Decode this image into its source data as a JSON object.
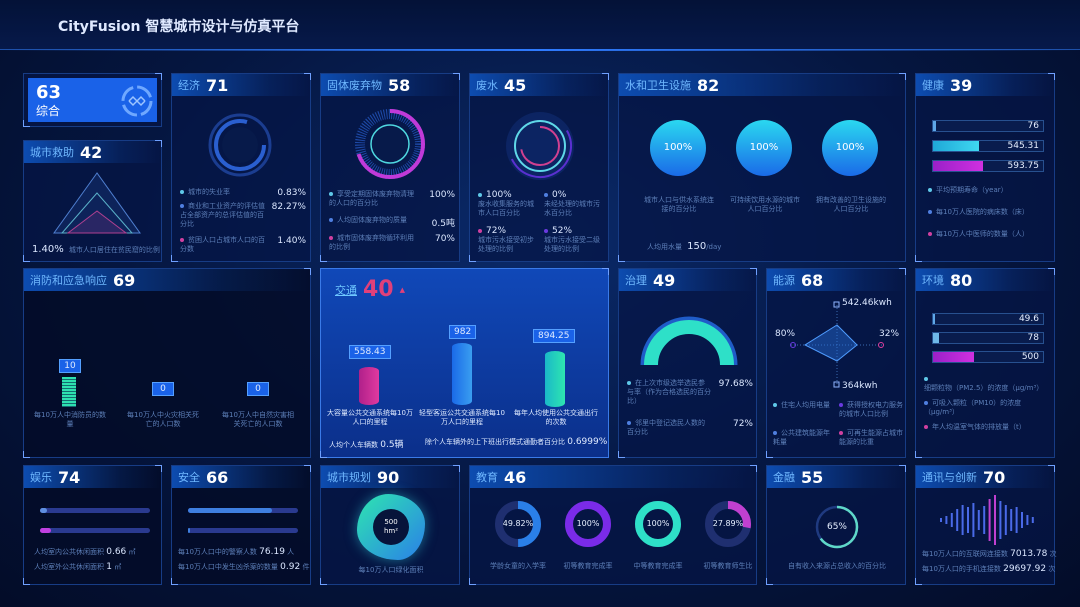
{
  "header": {
    "title": "CityFusion 智慧城市设计与仿真平台"
  },
  "colors": {
    "accent": "#1a62e8",
    "cyan": "#2fd3e0",
    "magenta": "#c42fd8",
    "teal": "#2ee6b8",
    "traffic_score": "#e0407a"
  },
  "overall": {
    "score": "63",
    "label": "综合",
    "icon": "city-network-icon"
  },
  "rescue": {
    "label": "城市救助",
    "score": "42",
    "value": "1.40%",
    "desc": "城市人口居住在贫民窟的比例"
  },
  "economy": {
    "label": "经济",
    "score": "71",
    "items": [
      {
        "text": "城市的失业率",
        "value": "0.83%"
      },
      {
        "text": "商业和工业资产的评估值占全部资产的总评估值的百分比",
        "value": "82.27%"
      },
      {
        "text": "贫困人口占城市人口的百分数",
        "value": "1.40%"
      }
    ]
  },
  "solid_waste": {
    "label": "固体废弃物",
    "score": "58",
    "items": [
      {
        "text": "享受定期固体废弃物清理的人口的百分比",
        "value": "100%"
      },
      {
        "text": "人均固体废弃物的质量",
        "value": "0.5吨"
      },
      {
        "text": "城市固体废弃物循环利用的比例",
        "value": "70%"
      }
    ]
  },
  "wastewater": {
    "label": "废水",
    "score": "45",
    "items": [
      {
        "value": "100%",
        "text": "废水收集服务的城市人口百分比"
      },
      {
        "value": "0%",
        "text": "未经处理的城市污水百分比"
      },
      {
        "value": "72%",
        "text": "城市污水接受初步处理的比例"
      },
      {
        "value": "52%",
        "text": "城市污水接受二级处理的比例"
      }
    ]
  },
  "water": {
    "label": "水和卫生设施",
    "score": "82",
    "items": [
      {
        "value": "100%",
        "text": "城市人口与供水系统连接的百分比"
      },
      {
        "value": "100%",
        "text": "可持续饮用水源的城市人口百分比"
      },
      {
        "value": "100%",
        "text": "拥有改善的卫生设施的人口百分比"
      }
    ],
    "usage_label": "人均用水量",
    "usage_value": "150",
    "usage_unit": "/day"
  },
  "health": {
    "label": "健康",
    "score": "39",
    "bars": [
      {
        "value": "76",
        "fill": 0.03
      },
      {
        "value": "545.31",
        "fill": 0.42
      },
      {
        "value": "593.75",
        "fill": 0.45
      }
    ],
    "legend": [
      "平均预期寿命（year）",
      "每10万人医院的病床数（床）",
      "每10万人中医师的数量（人）"
    ]
  },
  "fire": {
    "label": "消防和应急响应",
    "score": "69",
    "items": [
      {
        "value": "10",
        "text": "每10万人中消防员的数量"
      },
      {
        "value": "0",
        "text": "每10万人中火灾相关死亡的人口数"
      },
      {
        "value": "0",
        "text": "每10万人中自然灾害相关死亡的人口数"
      }
    ]
  },
  "traffic": {
    "label": "交通",
    "score": "40",
    "trend": "▲",
    "items": [
      {
        "value": "558.43",
        "text": "大容量公共交通系统每10万人口的里程"
      },
      {
        "value": "982",
        "text": "轻型客运公共交通系统每10万人口的里程"
      },
      {
        "value": "894.25",
        "text": "每年人均使用公共交通出行的次数"
      }
    ],
    "vehicles_label": "人均个人车辆数",
    "vehicles_value": "0.5辆",
    "commute_label": "除个人车辆外的上下班出行模式通勤者百分比",
    "commute_value": "0.6999%"
  },
  "governance": {
    "label": "治理",
    "score": "49",
    "gauge_percent": 97.68,
    "items": [
      {
        "text": "在上次市级选举选民参与率（作为合格选民的百分比）",
        "value": "97.68%"
      },
      {
        "text": "邻里中登记选民人数的百分比",
        "value": "72%"
      }
    ]
  },
  "energy": {
    "label": "能源",
    "score": "68",
    "radar": {
      "top": "542.46kwh",
      "right": "32%",
      "bottom": "364kwh",
      "left": "80%"
    },
    "legend": [
      "住宅人均用电量",
      "获得授权电力服务的城市人口比例",
      "公共建筑能源年耗量",
      "可再生能源占城市能源的比重"
    ]
  },
  "environment": {
    "label": "环境",
    "score": "80",
    "bars": [
      {
        "value": "49.6",
        "fill": 0.01
      },
      {
        "value": "78",
        "fill": 0.05
      },
      {
        "value": "500",
        "fill": 0.37
      }
    ],
    "legend": [
      "细颗粒物（PM2.5）的浓度（μg/m³）",
      "可吸入颗粒（PM10）的浓度（μg/m³）",
      "年人均温室气体的排放量（t）"
    ]
  },
  "recreation": {
    "label": "娱乐",
    "score": "74",
    "bars": [
      0.06,
      0.1
    ],
    "items": [
      {
        "text": "人均室内公共休闲面积",
        "value": "0.66",
        "unit": "㎡"
      },
      {
        "text": "人均室外公共休闲面积",
        "value": "1",
        "unit": "㎡"
      }
    ]
  },
  "safety": {
    "label": "安全",
    "score": "66",
    "bars": [
      0.76,
      0.01
    ],
    "items": [
      {
        "text": "每10万人口中的警察人数",
        "value": "76.19",
        "unit": "人"
      },
      {
        "text": "每10万人口中发生凶杀案的数量",
        "value": "0.92",
        "unit": "件"
      }
    ]
  },
  "planning": {
    "label": "城市规划",
    "score": "90",
    "value": "500",
    "unit": "hm²",
    "desc": "每10万人口绿化面积"
  },
  "education": {
    "label": "教育",
    "score": "46",
    "items": [
      {
        "value": "49.82%",
        "percent": 49.82,
        "color": "#2a7fe8",
        "text": "学龄女童的入学率"
      },
      {
        "value": "100%",
        "percent": 100,
        "color": "#7a2be8",
        "text": "初等教育完成率"
      },
      {
        "value": "100%",
        "percent": 100,
        "color": "#2ee0c8",
        "text": "中等教育完成率"
      },
      {
        "value": "27.89%",
        "percent": 27.89,
        "color": "#c040d0",
        "text": "初等教育师生比"
      }
    ]
  },
  "finance": {
    "label": "金融",
    "score": "55",
    "value": "65%",
    "percent": 65,
    "desc": "自有收入来源占总收入的百分比"
  },
  "telecom": {
    "label": "通讯与创新",
    "score": "70",
    "items": [
      {
        "text": "每10万人口的互联网连接数",
        "value": "7013.78",
        "unit": "次"
      },
      {
        "text": "每10万人口的手机连接数",
        "value": "29697.92",
        "unit": "次"
      }
    ]
  }
}
